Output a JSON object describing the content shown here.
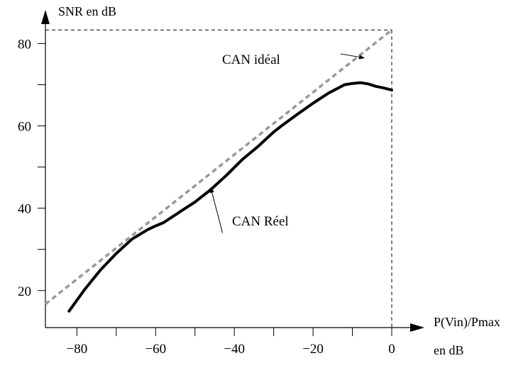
{
  "chart_data": {
    "type": "line",
    "ylabel": "SNR en dB",
    "xlabel_line1": "P(Vin)/Pmax",
    "xlabel_line2": "en dB",
    "xlim": [
      -88,
      0
    ],
    "ylim": [
      11,
      83
    ],
    "x_ticks": [
      -80,
      -60,
      -40,
      -20,
      0
    ],
    "x_tick_labels": [
      "−80",
      "−60",
      "−40",
      "−20",
      "0"
    ],
    "x_minor_ticks": [
      -70,
      -50,
      -30,
      -10
    ],
    "y_ticks": [
      20,
      40,
      60,
      80
    ],
    "y_tick_labels": [
      "20",
      "40",
      "60",
      "80"
    ],
    "y_minor_ticks": [
      30,
      50,
      70
    ],
    "grid": false,
    "series": [
      {
        "name": "CAN idéal",
        "color": "#999999",
        "style": "dashed",
        "x": [
          -88,
          0
        ],
        "y": [
          16.7,
          83.3
        ]
      },
      {
        "name": "CAN Réel",
        "color": "#000000",
        "style": "solid",
        "x": [
          -82,
          -78,
          -74,
          -70,
          -66,
          -62,
          -60,
          -58,
          -54,
          -50,
          -46,
          -42,
          -38,
          -34,
          -30,
          -28,
          -24,
          -20,
          -16,
          -12,
          -10,
          -8,
          -6,
          -4,
          -2,
          0
        ],
        "y": [
          15.0,
          20.3,
          25.0,
          29.0,
          32.5,
          34.8,
          35.7,
          36.5,
          39.0,
          41.5,
          44.5,
          48.0,
          51.8,
          55.0,
          58.5,
          60.0,
          62.8,
          65.5,
          68.0,
          70.0,
          70.3,
          70.5,
          70.2,
          69.6,
          69.2,
          68.7
        ]
      }
    ],
    "reference_value_y": 83.3,
    "annotations": [
      {
        "text": "CAN idéal",
        "arrow_from": [
          -13,
          77.5
        ],
        "arrow_to": [
          -7,
          76.5
        ]
      },
      {
        "text": "CAN Réel",
        "arrow_from": [
          -43,
          34
        ],
        "arrow_to": [
          -46,
          45
        ]
      }
    ],
    "colors": {
      "axis": "#000000",
      "ideal": "#999999",
      "real": "#000000"
    }
  }
}
